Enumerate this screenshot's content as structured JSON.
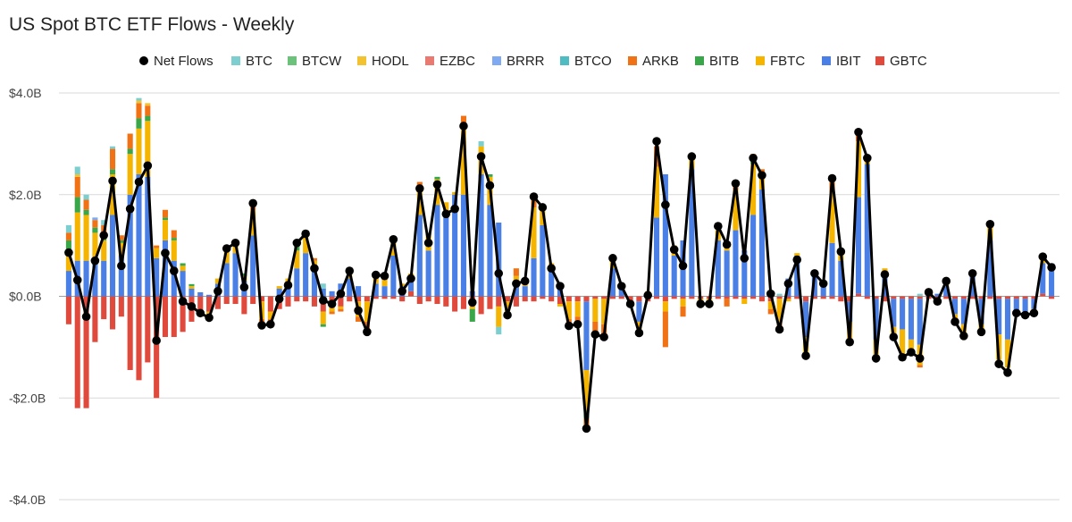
{
  "chart_data": {
    "type": "bar",
    "title": "US Spot BTC ETF Flows - Weekly",
    "ylabel": "",
    "xlabel": "",
    "ylim": [
      -4,
      4
    ],
    "yticks": [
      4,
      2,
      0,
      -2,
      -4
    ],
    "ytick_labels": [
      "$4.0B",
      "$2.0B",
      "$0.0B",
      "-$2.0B",
      "-$4.0B"
    ],
    "legend_position": "top",
    "series": [
      {
        "key": "BTC",
        "name": "BTC",
        "color": "#7dcfcf"
      },
      {
        "key": "BTCW",
        "name": "BTCW",
        "color": "#6cc27a"
      },
      {
        "key": "HODL",
        "name": "HODL",
        "color": "#f3c230"
      },
      {
        "key": "EZBC",
        "name": "EZBC",
        "color": "#e87a72"
      },
      {
        "key": "BRRR",
        "name": "BRRR",
        "color": "#7faaf2"
      },
      {
        "key": "BTCO",
        "name": "BTCO",
        "color": "#4fbcc4"
      },
      {
        "key": "ARKB",
        "name": "ARKB",
        "color": "#f07214"
      },
      {
        "key": "BITB",
        "name": "BITB",
        "color": "#3aa64a"
      },
      {
        "key": "FBTC",
        "name": "FBTC",
        "color": "#f4b400"
      },
      {
        "key": "IBIT",
        "name": "IBIT",
        "color": "#4a7fe6"
      },
      {
        "key": "GBTC",
        "name": "GBTC",
        "color": "#e04a3c"
      }
    ],
    "net_flows": {
      "name": "Net Flows",
      "color": "#000000"
    },
    "weeks": [
      {
        "net": 0.86,
        "GBTC": -0.55,
        "IBIT": 0.5,
        "FBTC": 0.4,
        "ARKB": 0.15,
        "BITB": 0.2,
        "BTC": 0.15
      },
      {
        "net": 0.32,
        "GBTC": -2.2,
        "IBIT": 0.7,
        "FBTC": 0.95,
        "ARKB": 0.4,
        "BITB": 0.3,
        "HODL": 0.05,
        "BTC": 0.15
      },
      {
        "net": -0.4,
        "GBTC": -2.2,
        "IBIT": 0.7,
        "FBTC": 0.9,
        "ARKB": 0.2,
        "BITB": 0.1,
        "BTC": 0.1
      },
      {
        "net": 0.7,
        "GBTC": -0.9,
        "IBIT": 0.75,
        "FBTC": 0.5,
        "ARKB": 0.15,
        "BITB": 0.1,
        "BRRR": 0.05
      },
      {
        "net": 1.2,
        "GBTC": -0.45,
        "IBIT": 0.7,
        "FBTC": 0.4,
        "ARKB": 0.2,
        "BITB": 0.1,
        "BTC": 0.1
      },
      {
        "net": 2.27,
        "GBTC": -0.65,
        "IBIT": 1.6,
        "FBTC": 0.8,
        "ARKB": 0.4,
        "BITB": 0.1,
        "BTC": 0.05
      },
      {
        "net": 0.6,
        "GBTC": -0.4,
        "IBIT": 0.8,
        "FBTC": 0.25,
        "ARKB": 0.1,
        "BITB": 0.05
      },
      {
        "net": 1.72,
        "GBTC": -1.45,
        "IBIT": 2.0,
        "FBTC": 0.8,
        "ARKB": 0.3,
        "BITB": 0.1
      },
      {
        "net": 2.25,
        "GBTC": -1.65,
        "IBIT": 2.4,
        "FBTC": 0.9,
        "ARKB": 0.3,
        "BITB": 0.2,
        "HODL": 0.05,
        "BTC": 0.05
      },
      {
        "net": 2.57,
        "GBTC": -1.3,
        "IBIT": 2.35,
        "FBTC": 1.1,
        "ARKB": 0.2,
        "BITB": 0.1,
        "HODL": 0.05
      },
      {
        "net": -0.87,
        "GBTC": -2.0,
        "IBIT": 0.75,
        "FBTC": 0.2,
        "ARKB": 0.05
      },
      {
        "net": 0.85,
        "GBTC": -0.8,
        "IBIT": 1.1,
        "FBTC": 0.4,
        "ARKB": 0.15,
        "BITB": 0.05
      },
      {
        "net": 0.5,
        "GBTC": -0.8,
        "IBIT": 0.7,
        "FBTC": 0.4,
        "ARKB": 0.15,
        "BITB": 0.05
      },
      {
        "net": -0.1,
        "GBTC": -0.7,
        "IBIT": 0.5,
        "FBTC": 0.1,
        "BITB": 0.05
      },
      {
        "net": -0.2,
        "GBTC": -0.5,
        "IBIT": 0.15,
        "FBTC": 0.05,
        "BITB": 0.04
      },
      {
        "net": -0.33,
        "GBTC": -0.35,
        "IBIT": 0.08,
        "FBTC": -0.05
      },
      {
        "net": -0.42,
        "GBTC": -0.3,
        "IBIT": 0.03,
        "FBTC": -0.1,
        "ARKB": -0.05
      },
      {
        "net": 0.1,
        "GBTC": -0.25,
        "IBIT": 0.25,
        "FBTC": 0.1
      },
      {
        "net": 0.94,
        "GBTC": -0.15,
        "IBIT": 0.65,
        "FBTC": 0.25,
        "BITB": 0.1
      },
      {
        "net": 1.05,
        "GBTC": -0.15,
        "IBIT": 0.85,
        "FBTC": 0.2,
        "BITB": 0.05
      },
      {
        "net": 0.18,
        "GBTC": -0.35,
        "IBIT": 0.3,
        "FBTC": 0.1,
        "BITB": 0.05
      },
      {
        "net": 1.83,
        "GBTC": -0.15,
        "IBIT": 1.2,
        "FBTC": 0.5,
        "ARKB": 0.2
      },
      {
        "net": -0.57,
        "GBTC": -0.1,
        "IBIT": 0.0,
        "FBTC": -0.35,
        "ARKB": -0.1
      },
      {
        "net": -0.55,
        "GBTC": -0.3,
        "FBTC": -0.15,
        "ARKB": -0.05
      },
      {
        "net": -0.05,
        "GBTC": -0.25,
        "IBIT": 0.15,
        "FBTC": 0.05
      },
      {
        "net": 0.22,
        "GBTC": -0.2,
        "IBIT": 0.25,
        "FBTC": 0.1
      },
      {
        "net": 1.05,
        "GBTC": -0.1,
        "IBIT": 0.55,
        "FBTC": 0.35,
        "BITB": 0.15,
        "ARKB": 0.05
      },
      {
        "net": 1.23,
        "GBTC": -0.1,
        "IBIT": 0.85,
        "FBTC": 0.35,
        "BITB": 0.1
      },
      {
        "net": 0.55,
        "GBTC": -0.2,
        "IBIT": 0.5,
        "FBTC": 0.2,
        "ARKB": 0.05
      },
      {
        "net": -0.08,
        "GBTC": -0.3,
        "IBIT": 0.15,
        "FBTC": -0.25,
        "BITB": -0.05,
        "BTC": 0.1
      },
      {
        "net": -0.15,
        "GBTC": -0.2,
        "IBIT": 0.1,
        "FBTC": -0.1,
        "ARKB": -0.05
      },
      {
        "net": 0.05,
        "GBTC": -0.2,
        "IBIT": 0.25,
        "FBTC": -0.05,
        "ARKB": -0.05
      },
      {
        "net": 0.5,
        "GBTC": -0.1,
        "IBIT": 0.35,
        "FBTC": 0.2
      },
      {
        "net": -0.28,
        "GBTC": -0.1,
        "IBIT": 0.2,
        "FBTC": -0.3,
        "ARKB": -0.1
      },
      {
        "net": -0.7,
        "GBTC": -0.1,
        "FBTC": -0.4,
        "ARKB": -0.2
      },
      {
        "net": 0.42,
        "GBTC": -0.05,
        "IBIT": 0.25,
        "FBTC": 0.15,
        "ARKB": 0.05
      },
      {
        "net": 0.4,
        "GBTC": -0.05,
        "IBIT": 0.2,
        "FBTC": 0.15,
        "ARKB": 0.05
      },
      {
        "net": 1.12,
        "GBTC": -0.05,
        "IBIT": 0.8,
        "FBTC": 0.3
      },
      {
        "net": 0.1,
        "GBTC": -0.1,
        "IBIT": 0.2,
        "FBTC": 0.05
      },
      {
        "net": 0.35,
        "GBTC": 0.1,
        "IBIT": 0.3,
        "FBTC": 0.05
      },
      {
        "net": 2.12,
        "GBTC": -0.15,
        "IBIT": 1.6,
        "FBTC": 0.5,
        "ARKB": 0.1,
        "BITB": 0.05
      },
      {
        "net": 1.05,
        "GBTC": -0.1,
        "IBIT": 0.9,
        "FBTC": 0.3,
        "BITB": 0.05
      },
      {
        "net": 2.2,
        "GBTC": -0.15,
        "IBIT": 1.8,
        "FBTC": 0.5,
        "BITB": 0.05
      },
      {
        "net": 1.62,
        "GBTC": -0.2,
        "IBIT": 1.6,
        "FBTC": 0.25
      },
      {
        "net": 1.72,
        "GBTC": -0.3,
        "IBIT": 2.0,
        "FBTC": 0.05
      },
      {
        "net": 3.35,
        "GBTC": -0.25,
        "IBIT": 2.0,
        "FBTC": 1.3,
        "ARKB": 0.25
      },
      {
        "net": -0.12,
        "GBTC": -0.15,
        "IBIT": 0.1,
        "FBTC": -0.1,
        "BITB": -0.25
      },
      {
        "net": 2.75,
        "GBTC": -0.35,
        "IBIT": 2.4,
        "FBTC": 0.55,
        "BTC": 0.1
      },
      {
        "net": 2.18,
        "GBTC": -0.25,
        "IBIT": 1.8,
        "FBTC": 0.55,
        "BITB": 0.05
      },
      {
        "net": 0.45,
        "GBTC": -0.2,
        "IBIT": 1.45,
        "FBTC": -0.4,
        "BTC": -0.15
      },
      {
        "net": -0.37,
        "GBTC": -0.1,
        "FBTC": -0.2
      },
      {
        "net": 0.25,
        "GBTC": -0.2,
        "IBIT": 0.3,
        "FBTC": 0.1,
        "ARKB": 0.15
      },
      {
        "net": 0.3,
        "GBTC": -0.1,
        "IBIT": 0.2,
        "FBTC": 0.1,
        "ARKB": 0.05
      },
      {
        "net": 1.96,
        "GBTC": -0.1,
        "IBIT": 0.75,
        "FBTC": 1.0,
        "ARKB": 0.2
      },
      {
        "net": 1.75,
        "GBTC": -0.05,
        "IBIT": 1.4,
        "FBTC": 0.3,
        "ARKB": 0.05
      },
      {
        "net": 0.55,
        "GBTC": -0.1,
        "IBIT": 0.5,
        "FBTC": 0.15
      },
      {
        "net": 0.2,
        "GBTC": -0.15,
        "IBIT": 0.25,
        "FBTC": -0.05
      },
      {
        "net": -0.58,
        "GBTC": -0.1,
        "FBTC": -0.35,
        "ARKB": -0.15
      },
      {
        "net": -0.55,
        "GBTC": -0.1,
        "FBTC": -0.3,
        "ARKB": -0.1
      },
      {
        "net": -2.6,
        "GBTC": -0.1,
        "IBIT": -1.35,
        "FBTC": -0.8,
        "ARKB": -0.2,
        "BITB": -0.15
      },
      {
        "net": -0.75,
        "GBTC": -0.05,
        "IBIT": 0.0,
        "FBTC": -0.45,
        "ARKB": -0.2
      },
      {
        "net": -0.8,
        "GBTC": -0.05,
        "FBTC": -0.5,
        "ARKB": -0.2
      },
      {
        "net": 0.75,
        "GBTC": -0.05,
        "IBIT": 0.55,
        "FBTC": 0.2
      },
      {
        "net": 0.2,
        "GBTC": -0.05,
        "IBIT": 0.15,
        "FBTC": 0.1
      },
      {
        "net": -0.15,
        "GBTC": -0.1,
        "FBTC": -0.05
      },
      {
        "net": -0.72,
        "GBTC": -0.1,
        "IBIT": -0.4,
        "FBTC": -0.15
      },
      {
        "net": 0.02,
        "GBTC": -0.1,
        "IBIT": 0.05,
        "FBTC": 0.05
      },
      {
        "net": 3.05,
        "GBTC": -0.05,
        "IBIT": 1.55,
        "FBTC": 1.0,
        "ARKB": 0.4
      },
      {
        "net": 1.8,
        "GBTC": -0.1,
        "IBIT": 2.4,
        "FBTC": -0.2,
        "ARKB": -0.7
      },
      {
        "net": 0.92,
        "GBTC": -0.05,
        "IBIT": 0.8,
        "FBTC": 0.2
      },
      {
        "net": 0.6,
        "GBTC": -0.05,
        "IBIT": 1.1,
        "FBTC": -0.15,
        "ARKB": -0.2
      },
      {
        "net": 2.75,
        "GBTC": -0.05,
        "IBIT": 2.5,
        "FBTC": 0.25,
        "BITB": 0.05
      },
      {
        "net": -0.15,
        "GBTC": -0.05,
        "FBTC": -0.05
      },
      {
        "net": -0.15,
        "GBTC": -0.05,
        "FBTC": -0.05
      },
      {
        "net": 1.38,
        "GBTC": -0.05,
        "IBIT": 1.1,
        "FBTC": 0.2
      },
      {
        "net": 1.02,
        "GBTC": -0.05,
        "IBIT": 0.9,
        "FBTC": 0.1,
        "ARKB": -0.15
      },
      {
        "net": 2.22,
        "GBTC": -0.05,
        "IBIT": 1.3,
        "FBTC": 0.8,
        "ARKB": 0.1
      },
      {
        "net": 0.75,
        "GBTC": -0.05,
        "IBIT": 0.9,
        "FBTC": -0.1
      },
      {
        "net": 2.72,
        "GBTC": -0.05,
        "IBIT": 1.6,
        "FBTC": 1.0,
        "ARKB": 0.15,
        "BITB": 0.05
      },
      {
        "net": 2.38,
        "GBTC": -0.1,
        "IBIT": 2.1,
        "FBTC": 0.3,
        "ARKB": 0.1
      },
      {
        "net": 0.05,
        "GBTC": -0.1,
        "IBIT": 0.1,
        "FBTC": -0.15,
        "ARKB": -0.1
      },
      {
        "net": -0.65,
        "GBTC": -0.05,
        "FBTC": -0.5,
        "ARKB": -0.15,
        "BTC": 0.05
      },
      {
        "net": 0.25,
        "GBTC": -0.05,
        "IBIT": 0.35,
        "FBTC": -0.05
      },
      {
        "net": 0.72,
        "GBTC": -0.05,
        "IBIT": 0.8,
        "FBTC": 0.05
      },
      {
        "net": -1.17,
        "GBTC": -0.1,
        "IBIT": -0.7,
        "FBTC": -0.3
      },
      {
        "net": 0.45,
        "GBTC": -0.05,
        "IBIT": 0.4,
        "FBTC": 0.1
      },
      {
        "net": 0.25,
        "GBTC": -0.05,
        "IBIT": 0.2,
        "FBTC": 0.1
      },
      {
        "net": 2.32,
        "GBTC": -0.05,
        "IBIT": 1.05,
        "FBTC": 1.0,
        "ARKB": 0.2
      },
      {
        "net": 0.88,
        "GBTC": -0.1,
        "IBIT": 0.7,
        "FBTC": 0.2
      },
      {
        "net": -0.9,
        "GBTC": -0.1,
        "IBIT": -0.4,
        "FBTC": -0.4
      },
      {
        "net": 3.23,
        "GBTC": 0.05,
        "IBIT": 1.9,
        "FBTC": 1.1,
        "ARKB": 0.2
      },
      {
        "net": 2.72,
        "GBTC": -0.05,
        "IBIT": 2.6,
        "FBTC": 0.15
      },
      {
        "net": -1.22,
        "GBTC": -0.05,
        "IBIT": -0.8,
        "FBTC": -0.3
      },
      {
        "net": 0.43,
        "GBTC": -0.1,
        "IBIT": 0.4,
        "FBTC": 0.15
      },
      {
        "net": -0.8,
        "GBTC": -0.05,
        "IBIT": -0.55,
        "FBTC": -0.2
      },
      {
        "net": -1.2,
        "GBTC": -0.05,
        "IBIT": -0.6,
        "FBTC": -0.5
      },
      {
        "net": -1.1,
        "GBTC": -0.05,
        "IBIT": -0.8,
        "FBTC": -0.25
      },
      {
        "net": -1.22,
        "GBTC": -0.05,
        "IBIT": -0.9,
        "FBTC": -0.4,
        "ARKB": -0.05,
        "BTC": 0.05
      },
      {
        "net": 0.08,
        "GBTC": -0.05,
        "IBIT": 0.05,
        "FBTC": 0.1
      },
      {
        "net": -0.1,
        "GBTC": -0.05,
        "IBIT": 0.05,
        "FBTC": -0.1
      },
      {
        "net": 0.3,
        "GBTC": -0.05,
        "IBIT": 0.2,
        "FBTC": 0.1,
        "BTC": 0.05
      },
      {
        "net": -0.5,
        "GBTC": -0.05,
        "IBIT": -0.3,
        "FBTC": -0.15
      },
      {
        "net": -0.78,
        "GBTC": -0.05,
        "IBIT": -0.5,
        "FBTC": -0.2
      },
      {
        "net": 0.45,
        "GBTC": -0.05,
        "IBIT": 0.4,
        "FBTC": 0.1
      },
      {
        "net": -0.7,
        "GBTC": -0.05,
        "IBIT": -0.5,
        "FBTC": -0.15
      },
      {
        "net": 1.42,
        "GBTC": -0.05,
        "IBIT": 1.1,
        "FBTC": 0.35
      },
      {
        "net": -1.33,
        "GBTC": -0.05,
        "IBIT": -0.7,
        "FBTC": -0.5
      },
      {
        "net": -1.5,
        "GBTC": -0.05,
        "IBIT": -0.8,
        "FBTC": -0.55
      },
      {
        "net": -0.33,
        "GBTC": -0.05,
        "IBIT": -0.25,
        "FBTC": -0.05
      },
      {
        "net": -0.37,
        "GBTC": -0.05,
        "IBIT": -0.25,
        "FBTC": -0.1
      },
      {
        "net": -0.33,
        "GBTC": -0.05,
        "IBIT": -0.2,
        "FBTC": -0.1
      },
      {
        "net": 0.78,
        "GBTC": 0.05,
        "IBIT": 0.6,
        "FBTC": 0.1
      },
      {
        "net": 0.57,
        "GBTC": -0.05,
        "IBIT": 0.5,
        "FBTC": 0.1,
        "BTC": 0.05
      }
    ]
  }
}
